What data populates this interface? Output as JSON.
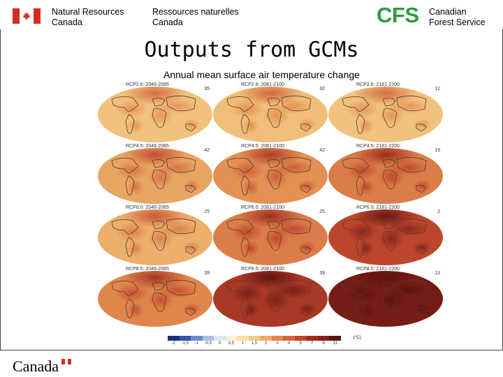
{
  "header": {
    "dept_en_line1": "Natural Resources",
    "dept_en_line2": "Canada",
    "dept_fr_line1": "Ressources naturelles",
    "dept_fr_line2": "Canada",
    "cfs_logo": "CFS",
    "cfs_line1": "Canadian",
    "cfs_line2": "Forest Service"
  },
  "slide": {
    "title": "Outputs from GCMs",
    "figure_title": "Annual mean surface air temperature change"
  },
  "panels": [
    {
      "label": "RCP2.6: 2046-2065",
      "count": "35",
      "heat": 0.18
    },
    {
      "label": "RCP2.6: 2081-2100",
      "count": "32",
      "heat": 0.2
    },
    {
      "label": "RCP2.6: 2181-2200",
      "count": "12",
      "heat": 0.18
    },
    {
      "label": "RCP4.5: 2046-2065",
      "count": "42",
      "heat": 0.3
    },
    {
      "label": "RCP4.5: 2081-2100",
      "count": "42",
      "heat": 0.38
    },
    {
      "label": "RCP4.5: 2181-2200",
      "count": "19",
      "heat": 0.45
    },
    {
      "label": "RCP6.0: 2046-2065",
      "count": "25",
      "heat": 0.26
    },
    {
      "label": "RCP6.0: 2081-2100",
      "count": "25",
      "heat": 0.45
    },
    {
      "label": "RCP6.0: 2181-2200",
      "count": "2",
      "heat": 0.65
    },
    {
      "label": "RCP8.5: 2046-2065",
      "count": "39",
      "heat": 0.42
    },
    {
      "label": "RCP8.5: 2081-2100",
      "count": "39",
      "heat": 0.72
    },
    {
      "label": "RCP8.5: 2181-2200",
      "count": "13",
      "heat": 0.92
    }
  ],
  "colorbar": {
    "ticks": [
      "-2",
      "-1.5",
      "-1",
      "-0.5",
      "0",
      "0.5",
      "1",
      "1.5",
      "2",
      "3",
      "4",
      "5",
      "7",
      "9",
      "11"
    ],
    "unit": "(°C)",
    "colors": [
      "#1d2f7a",
      "#3555a8",
      "#6b8ccc",
      "#a9c0e4",
      "#dbe6f4",
      "#fbf0d0",
      "#f9e0a8",
      "#f3c98a",
      "#eeaa66",
      "#e5874a",
      "#d96538",
      "#c94528",
      "#ab2a1e",
      "#842017",
      "#5b1410"
    ]
  },
  "footer": {
    "wordmark": "Canada"
  }
}
